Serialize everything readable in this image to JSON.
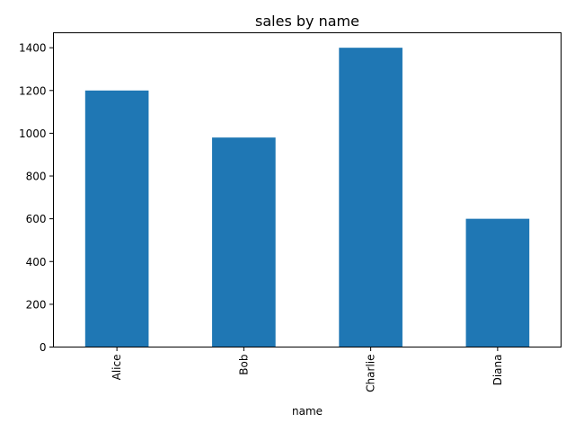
{
  "chart_data": {
    "type": "bar",
    "title": "sales by name",
    "xlabel": "name",
    "ylabel": "",
    "categories": [
      "Alice",
      "Bob",
      "Charlie",
      "Diana"
    ],
    "values": [
      1200,
      980,
      1400,
      600
    ],
    "ylim": [
      0,
      1470
    ],
    "yticks": [
      0,
      200,
      400,
      600,
      800,
      1000,
      1200,
      1400
    ],
    "grid": false,
    "legend": "none",
    "bar_color": "#1f77b4"
  }
}
